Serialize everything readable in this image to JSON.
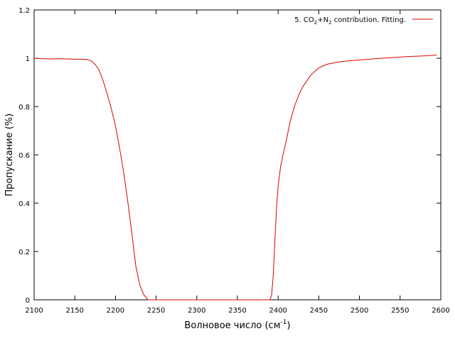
{
  "chart_data": {
    "type": "line",
    "xlabel": "Волновое число (см",
    "xlabel_sup": "-1",
    "xlabel_end": ")",
    "ylabel": "Пропускание (%)",
    "xlim": [
      2100,
      2600
    ],
    "ylim": [
      0,
      1.2
    ],
    "xticks": [
      2100,
      2150,
      2200,
      2250,
      2300,
      2350,
      2400,
      2450,
      2500,
      2550,
      2600
    ],
    "yticks": [
      0,
      0.2,
      0.4,
      0.6,
      0.8,
      1,
      1.2
    ],
    "ytick_labels": [
      "0",
      "0.2",
      "0.4",
      "0.6",
      "0.8",
      "1",
      "1.2"
    ],
    "grid": false,
    "legend_position": "top-right",
    "series": [
      {
        "name_parts": [
          "5. CO",
          "2",
          "+N",
          "2",
          " contribution. Fitting."
        ],
        "color": "#dd0000",
        "x": [
          2100,
          2110,
          2120,
          2130,
          2140,
          2150,
          2160,
          2165,
          2170,
          2175,
          2180,
          2185,
          2190,
          2195,
          2200,
          2205,
          2210,
          2215,
          2220,
          2225,
          2230,
          2235,
          2240,
          2390,
          2392,
          2394,
          2396,
          2398,
          2400,
          2403,
          2406,
          2410,
          2415,
          2420,
          2425,
          2430,
          2440,
          2450,
          2460,
          2470,
          2480,
          2490,
          2500,
          2520,
          2540,
          2560,
          2580,
          2590,
          2595
        ],
        "y": [
          1.0,
          0.998,
          0.997,
          0.998,
          0.997,
          0.996,
          0.996,
          0.995,
          0.99,
          0.975,
          0.95,
          0.905,
          0.85,
          0.79,
          0.72,
          0.63,
          0.53,
          0.41,
          0.28,
          0.14,
          0.06,
          0.02,
          0.0,
          0.0,
          0.02,
          0.1,
          0.24,
          0.38,
          0.47,
          0.55,
          0.6,
          0.66,
          0.74,
          0.8,
          0.845,
          0.88,
          0.93,
          0.96,
          0.975,
          0.982,
          0.987,
          0.99,
          0.993,
          0.998,
          1.003,
          1.007,
          1.01,
          1.012,
          1.013
        ]
      }
    ]
  }
}
